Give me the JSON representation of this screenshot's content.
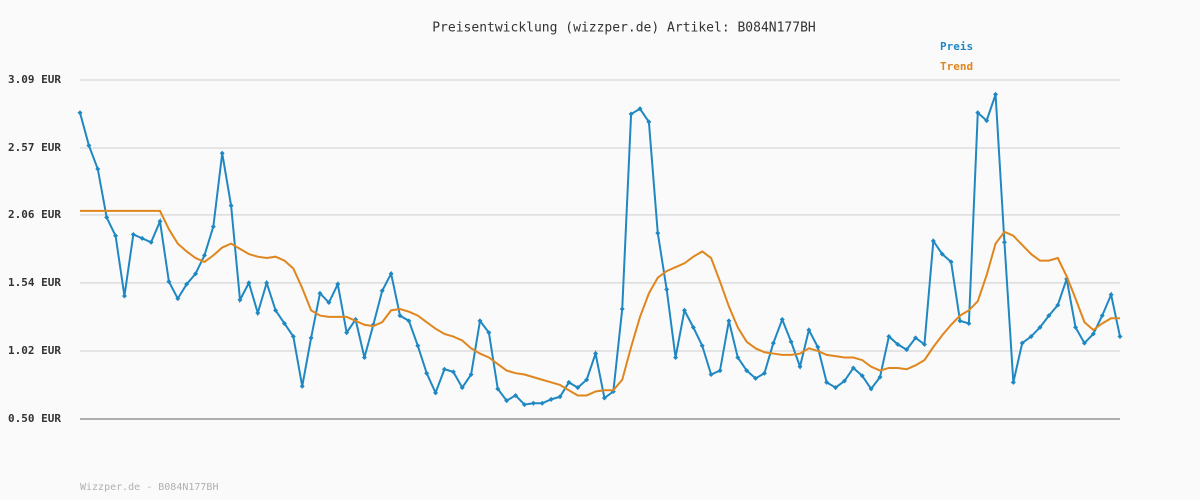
{
  "chart_data": {
    "type": "line",
    "title": "Preisentwicklung (wizzper.de) Artikel: B084N177BH",
    "footer": "Wizzper.de - B084N177BH",
    "ylim": [
      0.5,
      3.09
    ],
    "yticks": [
      {
        "value": 0.5,
        "label": "0.50 EUR"
      },
      {
        "value": 1.02,
        "label": "1.02 EUR"
      },
      {
        "value": 1.54,
        "label": "1.54 EUR"
      },
      {
        "value": 2.06,
        "label": "2.06 EUR"
      },
      {
        "value": 2.57,
        "label": "2.57 EUR"
      },
      {
        "value": 3.09,
        "label": "3.09 EUR"
      }
    ],
    "grid": true,
    "legend": "top-right",
    "series": [
      {
        "name": "Preis",
        "color": "#1f88c3",
        "markers": true,
        "values": [
          2.84,
          2.59,
          2.41,
          2.04,
          1.9,
          1.44,
          1.91,
          1.88,
          1.85,
          2.01,
          1.55,
          1.42,
          1.53,
          1.61,
          1.75,
          1.97,
          2.53,
          2.13,
          1.41,
          1.54,
          1.31,
          1.54,
          1.33,
          1.23,
          1.13,
          0.75,
          1.12,
          1.46,
          1.39,
          1.53,
          1.16,
          1.26,
          0.97,
          1.22,
          1.48,
          1.61,
          1.29,
          1.25,
          1.06,
          0.85,
          0.7,
          0.88,
          0.86,
          0.74,
          0.84,
          1.25,
          1.16,
          0.73,
          0.64,
          0.68,
          0.61,
          0.62,
          0.62,
          0.65,
          0.67,
          0.78,
          0.74,
          0.8,
          1.0,
          0.66,
          0.71,
          1.34,
          2.83,
          2.87,
          2.77,
          1.92,
          1.49,
          0.97,
          1.33,
          1.2,
          1.06,
          0.84,
          0.87,
          1.25,
          0.97,
          0.87,
          0.81,
          0.85,
          1.08,
          1.26,
          1.09,
          0.9,
          1.18,
          1.05,
          0.78,
          0.74,
          0.79,
          0.89,
          0.83,
          0.73,
          0.82,
          1.13,
          1.07,
          1.03,
          1.12,
          1.07,
          1.86,
          1.76,
          1.7,
          1.25,
          1.23,
          2.84,
          2.78,
          2.98,
          1.85,
          0.78,
          1.08,
          1.13,
          1.2,
          1.29,
          1.37,
          1.57,
          1.2,
          1.08,
          1.15,
          1.29,
          1.45,
          1.13
        ]
      },
      {
        "name": "Trend",
        "color": "#e0861e",
        "markers": false,
        "values": [
          2.09,
          2.09,
          2.09,
          2.09,
          2.09,
          2.09,
          2.09,
          2.09,
          2.09,
          2.09,
          1.95,
          1.84,
          1.78,
          1.73,
          1.7,
          1.75,
          1.81,
          1.84,
          1.8,
          1.76,
          1.74,
          1.73,
          1.74,
          1.71,
          1.65,
          1.5,
          1.33,
          1.29,
          1.28,
          1.28,
          1.28,
          1.25,
          1.22,
          1.21,
          1.24,
          1.33,
          1.34,
          1.32,
          1.29,
          1.24,
          1.19,
          1.15,
          1.13,
          1.1,
          1.04,
          1.0,
          0.97,
          0.92,
          0.87,
          0.85,
          0.84,
          0.82,
          0.8,
          0.78,
          0.76,
          0.72,
          0.68,
          0.68,
          0.71,
          0.72,
          0.72,
          0.8,
          1.05,
          1.28,
          1.46,
          1.58,
          1.63,
          1.66,
          1.69,
          1.74,
          1.78,
          1.73,
          1.55,
          1.36,
          1.2,
          1.09,
          1.04,
          1.01,
          1.0,
          0.99,
          0.99,
          1.0,
          1.04,
          1.02,
          0.99,
          0.98,
          0.97,
          0.97,
          0.95,
          0.9,
          0.87,
          0.89,
          0.89,
          0.88,
          0.91,
          0.95,
          1.05,
          1.14,
          1.22,
          1.29,
          1.33,
          1.4,
          1.6,
          1.84,
          1.93,
          1.9,
          1.83,
          1.76,
          1.71,
          1.71,
          1.73,
          1.59,
          1.42,
          1.24,
          1.18,
          1.23,
          1.27,
          1.27
        ]
      }
    ]
  }
}
